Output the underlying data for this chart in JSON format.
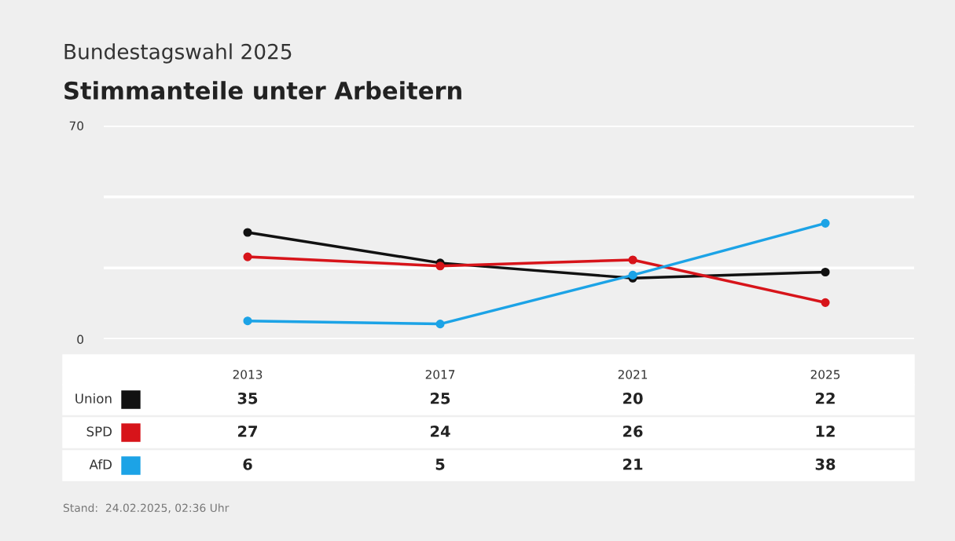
{
  "chart_data": {
    "type": "line",
    "title": "Stimmanteile unter Arbeitern",
    "subtitle": "Bundestagswahl 2025",
    "categories": [
      "2013",
      "2017",
      "2021",
      "2025"
    ],
    "series": [
      {
        "name": "Union",
        "color": "#111111",
        "values": [
          35,
          25,
          20,
          22
        ]
      },
      {
        "name": "SPD",
        "color": "#d7141a",
        "values": [
          27,
          24,
          26,
          12
        ]
      },
      {
        "name": "AfD",
        "color": "#1ca3e6",
        "values": [
          6,
          5,
          21,
          38
        ]
      }
    ],
    "ylim": [
      0,
      70
    ],
    "yticks": [
      0,
      {
        "value": 23.33,
        "label": null
      },
      {
        "value": 46.67,
        "label": null
      },
      70
    ],
    "grid": "y",
    "marker": "circle",
    "line_style": "solid",
    "legend": "bottom",
    "data_labels": true,
    "annotations": [
      "Stand:  24.02.2025, 02:36 Uhr"
    ]
  }
}
